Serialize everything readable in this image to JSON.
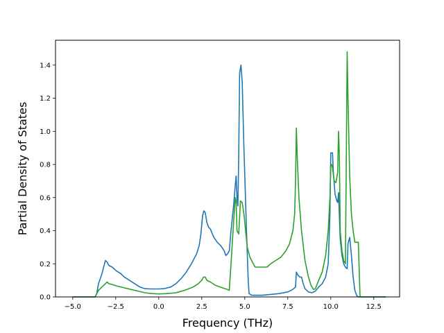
{
  "chart_data": {
    "type": "line",
    "title": "",
    "xlabel": "Frequency (THz)",
    "ylabel": "Partial Density of States",
    "xlim": [
      -6.0,
      14.0
    ],
    "ylim": [
      0.0,
      1.55
    ],
    "xticks": [
      -5.0,
      -2.5,
      0.0,
      2.5,
      5.0,
      7.5,
      10.0,
      12.5
    ],
    "xtick_labels": [
      "−5.0",
      "−2.5",
      "0.0",
      "2.5",
      "5.0",
      "7.5",
      "10.0",
      "12.5"
    ],
    "yticks": [
      0.0,
      0.2,
      0.4,
      0.6,
      0.8,
      1.0,
      1.2,
      1.4
    ],
    "ytick_labels": [
      "0.0",
      "0.2",
      "0.4",
      "0.6",
      "0.8",
      "1.0",
      "1.2",
      "1.4"
    ],
    "grid": false,
    "legend": "none",
    "series": [
      {
        "color": "#1f77b4",
        "points": [
          [
            -5.0,
            0.0
          ],
          [
            -3.7,
            0.0
          ],
          [
            -3.6,
            0.02
          ],
          [
            -3.5,
            0.08
          ],
          [
            -3.3,
            0.14
          ],
          [
            -3.2,
            0.18
          ],
          [
            -3.1,
            0.22
          ],
          [
            -3.0,
            0.21
          ],
          [
            -2.9,
            0.19
          ],
          [
            -2.7,
            0.18
          ],
          [
            -2.5,
            0.16
          ],
          [
            -2.2,
            0.14
          ],
          [
            -2.0,
            0.12
          ],
          [
            -1.7,
            0.1
          ],
          [
            -1.4,
            0.08
          ],
          [
            -1.1,
            0.06
          ],
          [
            -0.8,
            0.05
          ],
          [
            -0.5,
            0.048
          ],
          [
            0.0,
            0.048
          ],
          [
            0.3,
            0.05
          ],
          [
            0.7,
            0.06
          ],
          [
            1.0,
            0.08
          ],
          [
            1.3,
            0.11
          ],
          [
            1.6,
            0.15
          ],
          [
            1.9,
            0.2
          ],
          [
            2.2,
            0.26
          ],
          [
            2.35,
            0.31
          ],
          [
            2.45,
            0.38
          ],
          [
            2.55,
            0.49
          ],
          [
            2.62,
            0.52
          ],
          [
            2.7,
            0.51
          ],
          [
            2.8,
            0.45
          ],
          [
            2.9,
            0.42
          ],
          [
            3.0,
            0.41
          ],
          [
            3.2,
            0.36
          ],
          [
            3.4,
            0.33
          ],
          [
            3.6,
            0.31
          ],
          [
            3.8,
            0.28
          ],
          [
            3.9,
            0.25
          ],
          [
            4.0,
            0.26
          ],
          [
            4.1,
            0.28
          ],
          [
            4.2,
            0.4
          ],
          [
            4.35,
            0.55
          ],
          [
            4.45,
            0.68
          ],
          [
            4.5,
            0.73
          ],
          [
            4.55,
            0.6
          ],
          [
            4.6,
            0.55
          ],
          [
            4.65,
            0.85
          ],
          [
            4.7,
            1.35
          ],
          [
            4.78,
            1.4
          ],
          [
            4.85,
            1.3
          ],
          [
            4.95,
            0.9
          ],
          [
            5.1,
            0.4
          ],
          [
            5.2,
            0.1
          ],
          [
            5.25,
            0.02
          ],
          [
            5.4,
            0.01
          ],
          [
            6.0,
            0.01
          ],
          [
            6.5,
            0.015
          ],
          [
            7.0,
            0.02
          ],
          [
            7.5,
            0.03
          ],
          [
            7.7,
            0.04
          ],
          [
            7.85,
            0.05
          ],
          [
            7.95,
            0.06
          ],
          [
            8.0,
            0.15
          ],
          [
            8.1,
            0.13
          ],
          [
            8.2,
            0.12
          ],
          [
            8.3,
            0.12
          ],
          [
            8.4,
            0.08
          ],
          [
            8.5,
            0.05
          ],
          [
            8.7,
            0.03
          ],
          [
            8.9,
            0.025
          ],
          [
            9.1,
            0.035
          ],
          [
            9.3,
            0.06
          ],
          [
            9.5,
            0.08
          ],
          [
            9.7,
            0.12
          ],
          [
            9.85,
            0.2
          ],
          [
            9.95,
            0.5
          ],
          [
            10.0,
            0.87
          ],
          [
            10.1,
            0.87
          ],
          [
            10.15,
            0.75
          ],
          [
            10.25,
            0.62
          ],
          [
            10.35,
            0.58
          ],
          [
            10.4,
            0.57
          ],
          [
            10.45,
            0.63
          ],
          [
            10.55,
            0.35
          ],
          [
            10.65,
            0.25
          ],
          [
            10.75,
            0.2
          ],
          [
            10.85,
            0.18
          ],
          [
            10.95,
            0.17
          ],
          [
            11.0,
            0.32
          ],
          [
            11.1,
            0.36
          ],
          [
            11.2,
            0.25
          ],
          [
            11.3,
            0.12
          ],
          [
            11.4,
            0.04
          ],
          [
            11.5,
            0.01
          ],
          [
            11.6,
            0.0
          ],
          [
            13.2,
            0.0
          ]
        ]
      },
      {
        "color": "#2ca02c",
        "points": [
          [
            -5.0,
            0.0
          ],
          [
            -3.7,
            0.0
          ],
          [
            -3.6,
            0.02
          ],
          [
            -3.5,
            0.04
          ],
          [
            -3.3,
            0.06
          ],
          [
            -3.1,
            0.08
          ],
          [
            -3.0,
            0.09
          ],
          [
            -2.9,
            0.08
          ],
          [
            -2.7,
            0.075
          ],
          [
            -2.4,
            0.065
          ],
          [
            -2.0,
            0.055
          ],
          [
            -1.6,
            0.045
          ],
          [
            -1.2,
            0.035
          ],
          [
            -0.8,
            0.025
          ],
          [
            -0.4,
            0.02
          ],
          [
            0.0,
            0.018
          ],
          [
            0.5,
            0.02
          ],
          [
            1.0,
            0.025
          ],
          [
            1.5,
            0.04
          ],
          [
            2.0,
            0.06
          ],
          [
            2.3,
            0.08
          ],
          [
            2.5,
            0.1
          ],
          [
            2.6,
            0.12
          ],
          [
            2.7,
            0.12
          ],
          [
            2.8,
            0.1
          ],
          [
            3.0,
            0.09
          ],
          [
            3.3,
            0.07
          ],
          [
            3.7,
            0.055
          ],
          [
            4.0,
            0.045
          ],
          [
            4.1,
            0.04
          ],
          [
            4.2,
            0.2
          ],
          [
            4.35,
            0.45
          ],
          [
            4.45,
            0.6
          ],
          [
            4.5,
            0.58
          ],
          [
            4.55,
            0.4
          ],
          [
            4.65,
            0.38
          ],
          [
            4.75,
            0.58
          ],
          [
            4.85,
            0.57
          ],
          [
            4.95,
            0.5
          ],
          [
            5.05,
            0.4
          ],
          [
            5.15,
            0.3
          ],
          [
            5.3,
            0.24
          ],
          [
            5.5,
            0.2
          ],
          [
            5.6,
            0.18
          ],
          [
            6.0,
            0.18
          ],
          [
            6.3,
            0.18
          ],
          [
            6.5,
            0.2
          ],
          [
            6.8,
            0.22
          ],
          [
            7.1,
            0.24
          ],
          [
            7.4,
            0.28
          ],
          [
            7.6,
            0.32
          ],
          [
            7.8,
            0.4
          ],
          [
            7.9,
            0.5
          ],
          [
            7.95,
            0.7
          ],
          [
            8.0,
            1.02
          ],
          [
            8.05,
            0.85
          ],
          [
            8.15,
            0.6
          ],
          [
            8.3,
            0.4
          ],
          [
            8.5,
            0.22
          ],
          [
            8.7,
            0.12
          ],
          [
            8.85,
            0.07
          ],
          [
            9.0,
            0.045
          ],
          [
            9.1,
            0.05
          ],
          [
            9.3,
            0.1
          ],
          [
            9.5,
            0.15
          ],
          [
            9.7,
            0.25
          ],
          [
            9.85,
            0.4
          ],
          [
            9.95,
            0.6
          ],
          [
            10.0,
            0.79
          ],
          [
            10.05,
            0.8
          ],
          [
            10.1,
            0.78
          ],
          [
            10.2,
            0.7
          ],
          [
            10.3,
            0.69
          ],
          [
            10.4,
            0.75
          ],
          [
            10.45,
            1.0
          ],
          [
            10.5,
            0.85
          ],
          [
            10.55,
            0.4
          ],
          [
            10.65,
            0.28
          ],
          [
            10.75,
            0.22
          ],
          [
            10.85,
            0.2
          ],
          [
            10.9,
            0.8
          ],
          [
            10.95,
            1.48
          ],
          [
            11.0,
            1.2
          ],
          [
            11.1,
            0.72
          ],
          [
            11.2,
            0.5
          ],
          [
            11.3,
            0.4
          ],
          [
            11.4,
            0.33
          ],
          [
            11.6,
            0.33
          ],
          [
            11.7,
            0.0
          ],
          [
            13.2,
            0.0
          ]
        ]
      }
    ]
  }
}
